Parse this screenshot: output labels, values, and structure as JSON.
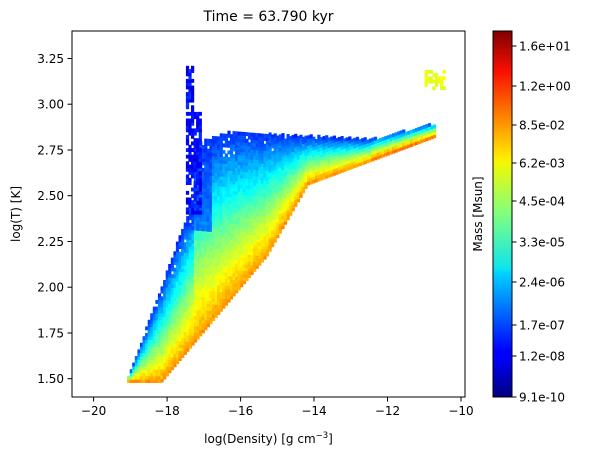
{
  "chart_data": {
    "type": "heatmap",
    "title": "Time = 63.790 kyr",
    "xlabel": "log(Density) [g cm",
    "xlabel_sup": "−3",
    "xlabel_end": "]",
    "ylabel": "log(T) [K]",
    "xlim": [
      -20.6,
      -9.9
    ],
    "ylim": [
      1.4,
      3.4
    ],
    "x_ticks": [
      -20,
      -18,
      -16,
      -14,
      -12,
      -10
    ],
    "x_tick_labels": [
      "−20",
      "−18",
      "−16",
      "−14",
      "−12",
      "−10"
    ],
    "y_ticks": [
      1.5,
      1.75,
      2.0,
      2.25,
      2.5,
      2.75,
      3.0,
      3.25
    ],
    "y_tick_labels": [
      "1.50",
      "1.75",
      "2.00",
      "2.25",
      "2.50",
      "2.75",
      "3.00",
      "3.25"
    ],
    "colorbar": {
      "label": "Mass [Msun]",
      "colormap": "jet",
      "tick_labels": [
        "9.1e-10",
        "1.2e-08",
        "1.7e-07",
        "2.4e-06",
        "3.3e-05",
        "4.5e-04",
        "6.2e-03",
        "8.5e-02",
        "1.2e+00",
        "1.6e+01"
      ]
    },
    "grid": false,
    "colors": {
      "jet": [
        "#00007f",
        "#0000ff",
        "#007fff",
        "#00ffff",
        "#7fff7f",
        "#ffff00",
        "#ff7f00",
        "#ff0000",
        "#7f0000"
      ]
    }
  }
}
